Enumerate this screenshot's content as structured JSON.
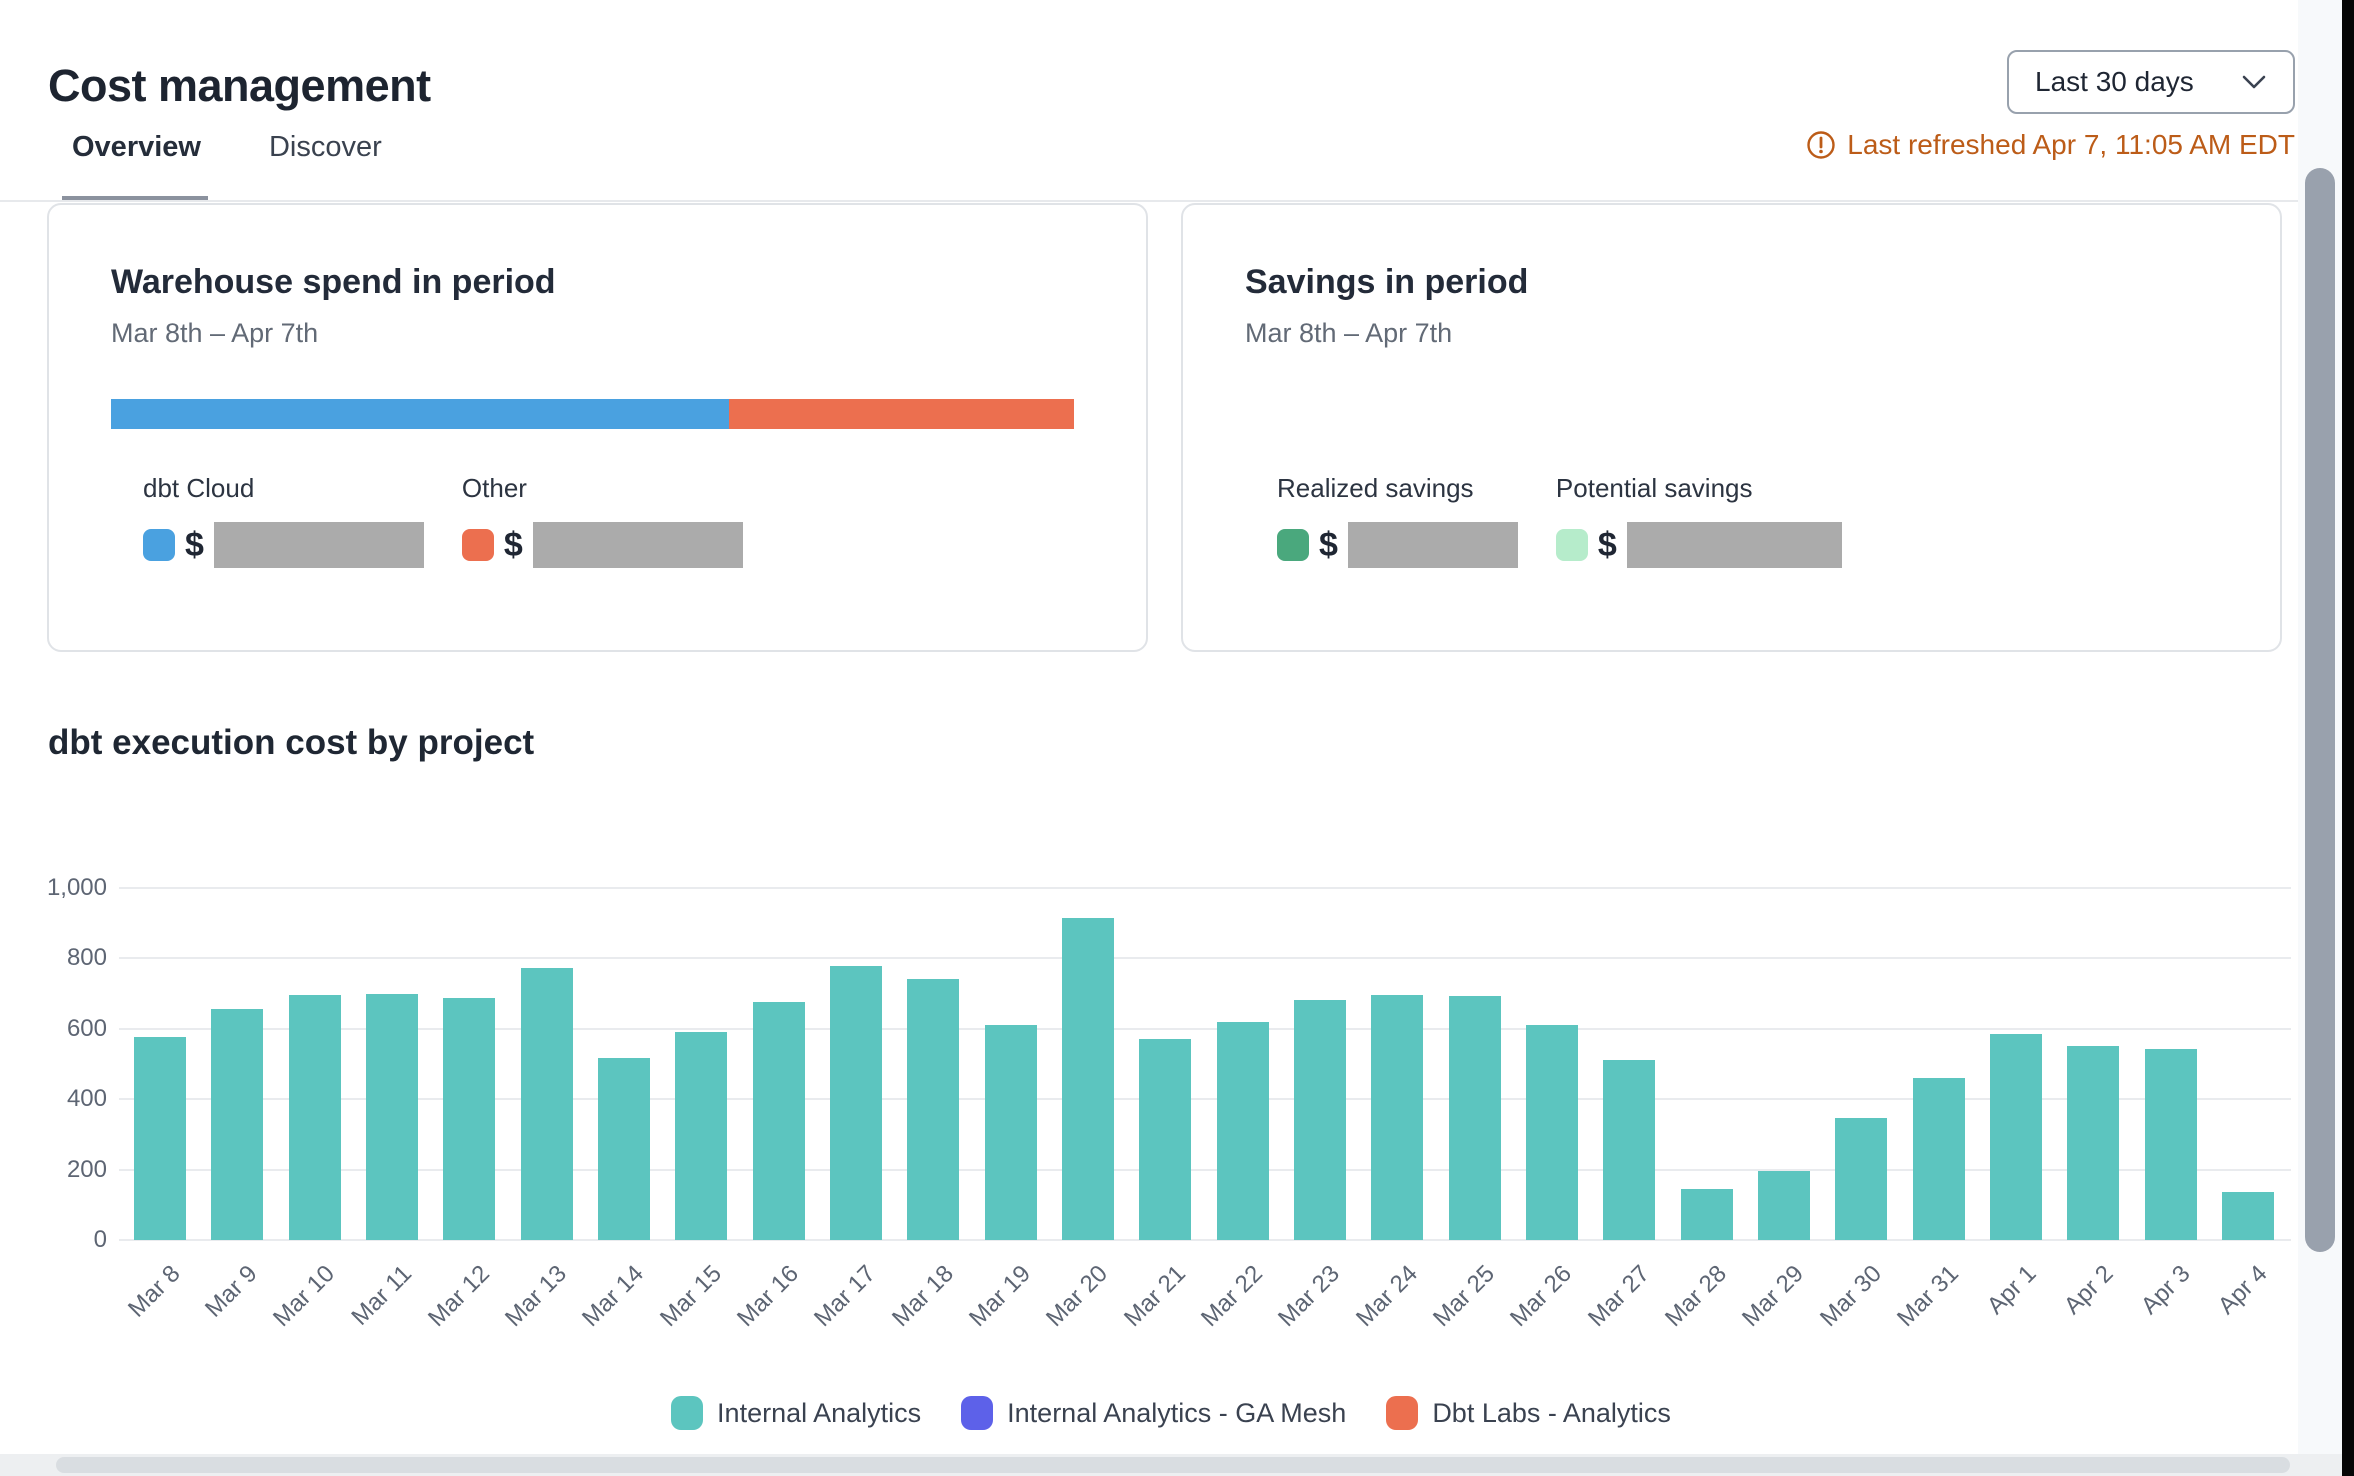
{
  "header": {
    "title": "Cost management",
    "date_range": {
      "selected": "Last 30 days"
    },
    "last_refreshed": "Last refreshed Apr 7, 11:05 AM EDT",
    "refresh_status_color": "#bc5c18"
  },
  "tabs": [
    {
      "label": "Overview",
      "active": true
    },
    {
      "label": "Discover",
      "active": false
    }
  ],
  "warehouse_card": {
    "title": "Warehouse spend in period",
    "subtitle": "Mar 8th – Apr 7th",
    "currency_symbol": "$",
    "segments": [
      {
        "label": "dbt Cloud",
        "color": "#4aa1e0",
        "width_pct": 64.2,
        "value_redacted": true
      },
      {
        "label": "Other",
        "color": "#ec6f4f",
        "width_pct": 35.8,
        "value_redacted": true
      }
    ]
  },
  "savings_card": {
    "title": "Savings in period",
    "subtitle": "Mar 8th – Apr 7th",
    "currency_symbol": "$",
    "items": [
      {
        "label": "Realized savings",
        "color": "#4aa87d",
        "value_redacted": true
      },
      {
        "label": "Potential savings",
        "color": "#b6eccb",
        "value_redacted": true
      }
    ]
  },
  "chart_data": {
    "type": "bar",
    "title": "dbt execution cost by project",
    "categories": [
      "Mar 8",
      "Mar 9",
      "Mar 10",
      "Mar 11",
      "Mar 12",
      "Mar 13",
      "Mar 14",
      "Mar 15",
      "Mar 16",
      "Mar 17",
      "Mar 18",
      "Mar 19",
      "Mar 20",
      "Mar 21",
      "Mar 22",
      "Mar 23",
      "Mar 24",
      "Mar 25",
      "Mar 26",
      "Mar 27",
      "Mar 28",
      "Mar 29",
      "Mar 30",
      "Mar 31",
      "Apr 1",
      "Apr 2",
      "Apr 3",
      "Apr 4"
    ],
    "values": [
      576,
      657,
      697,
      700,
      688,
      773,
      516,
      590,
      677,
      779,
      742,
      612,
      914,
      570,
      618,
      682,
      697,
      694,
      612,
      511,
      144,
      195,
      347,
      460,
      584,
      550,
      542,
      135
    ],
    "bar_color": "#5cc5bf",
    "xlabel": "",
    "ylabel": "",
    "ylim": [
      0,
      1000
    ],
    "yticks": [
      0,
      200,
      400,
      600,
      800,
      1000
    ],
    "ytick_labels": [
      "0",
      "200",
      "400",
      "600",
      "800",
      "1,000"
    ],
    "grid": true,
    "legend_position": "bottom",
    "legend": [
      {
        "label": "Internal Analytics",
        "color": "#5cc5bf"
      },
      {
        "label": "Internal Analytics - GA Mesh",
        "color": "#5d61e9"
      },
      {
        "label": "Dbt Labs - Analytics",
        "color": "#ec6f4f"
      }
    ]
  },
  "icons": {
    "chevron_down": "⌄",
    "warning": "!"
  }
}
